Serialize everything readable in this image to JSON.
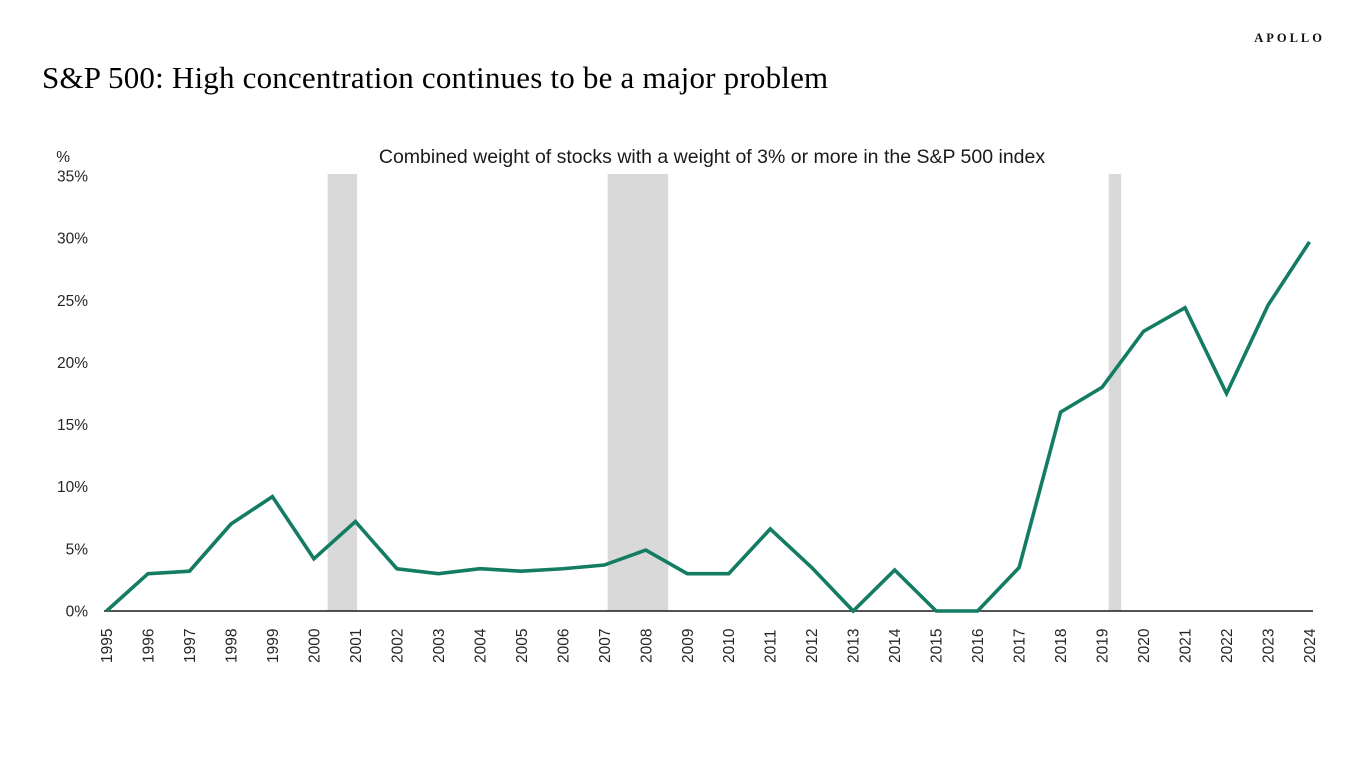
{
  "brand": {
    "name": "APOLLO"
  },
  "title": "S&P 500: High concentration continues to be a major problem",
  "chart_data": {
    "type": "line",
    "title": "Combined weight of stocks with a weight of 3% or more in the S&P 500 index",
    "unit_label": "%",
    "x": [
      1995,
      1996,
      1997,
      1998,
      1999,
      2000,
      2001,
      2002,
      2003,
      2004,
      2005,
      2006,
      2007,
      2008,
      2009,
      2010,
      2011,
      2012,
      2013,
      2014,
      2015,
      2016,
      2017,
      2018,
      2019,
      2020,
      2021,
      2022,
      2023,
      2024
    ],
    "series": [
      {
        "name": "Combined weight of stocks with a weight of 3% or more",
        "values": [
          0,
          3,
          3.2,
          7,
          9.2,
          4.2,
          7.2,
          3.4,
          3,
          3.4,
          3.2,
          3.4,
          3.7,
          4.9,
          3,
          3,
          6.6,
          3.5,
          0,
          3.3,
          0,
          0,
          3.5,
          16,
          18,
          22.5,
          24.4,
          17.5,
          24.6,
          29.7
        ]
      }
    ],
    "ylim": [
      0,
      35
    ],
    "yticks": [
      0,
      5,
      10,
      15,
      20,
      25,
      30,
      35
    ],
    "ytick_suffix": "%",
    "grid": false,
    "legend": "none",
    "x_tick_rotation": -90,
    "recession_bands": [
      {
        "from_year": 2000.33,
        "to_year": 2001.04
      },
      {
        "from_year": 2007.08,
        "to_year": 2008.54
      },
      {
        "from_year": 2019.16,
        "to_year": 2019.46
      }
    ],
    "line_color": "#137C63",
    "band_color": "#D9D9D9",
    "axis_color": "#1A1A1A",
    "tick_label_color": "#262626"
  }
}
